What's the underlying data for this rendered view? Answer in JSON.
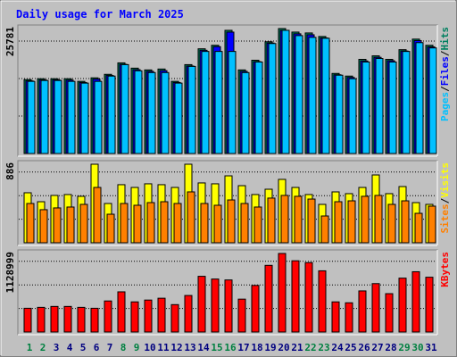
{
  "chart_data": {
    "type": "bar",
    "title": "Daily usage for March 2025",
    "categories": [
      "1",
      "2",
      "3",
      "4",
      "5",
      "6",
      "7",
      "8",
      "9",
      "10",
      "11",
      "12",
      "13",
      "14",
      "15",
      "16",
      "17",
      "18",
      "19",
      "20",
      "21",
      "22",
      "23",
      "24",
      "25",
      "26",
      "27",
      "28",
      "29",
      "30",
      "31"
    ],
    "category_colors": [
      "#008040",
      "#008040",
      "#000080",
      "#000080",
      "#000080",
      "#000080",
      "#000080",
      "#008040",
      "#008040",
      "#000080",
      "#000080",
      "#000080",
      "#000080",
      "#000080",
      "#008040",
      "#008040",
      "#000080",
      "#000080",
      "#000080",
      "#000080",
      "#000080",
      "#008040",
      "#008040",
      "#000080",
      "#000080",
      "#000080",
      "#000080",
      "#000080",
      "#008040",
      "#008040",
      "#000080"
    ],
    "legend_separator": "/",
    "panels": [
      {
        "ylim": [
          0,
          25781
        ],
        "yticks": [
          25781
        ],
        "series": [
          {
            "name": "Hits",
            "color": "#008060",
            "values": [
              15251,
              15433,
              15433,
              15433,
              14888,
              15614,
              16340,
              18701,
              17611,
              17248,
              17430,
              14888,
              18338,
              21606,
              22332,
              25418,
              17248,
              19245,
              23058,
              25781,
              25055,
              24874,
              24147,
              16522,
              15977,
              19427,
              20153,
              19427,
              21424,
              23603,
              22332
            ]
          },
          {
            "name": "Files",
            "color": "#0000ff",
            "values": [
              14990,
              15180,
              15200,
              15150,
              14650,
              15350,
              16100,
              18400,
              17300,
              16950,
              17100,
              14650,
              18050,
              21300,
              22050,
              25050,
              16950,
              18950,
              22800,
              25400,
              24700,
              24500,
              23850,
              16250,
              15700,
              19100,
              19850,
              19150,
              21150,
              23300,
              22000
            ]
          },
          {
            "name": "Pages",
            "color": "#00c0ff",
            "values": [
              14888,
              15069,
              15069,
              14888,
              14525,
              14888,
              15977,
              18338,
              17067,
              16704,
              16704,
              14525,
              17974,
              21061,
              21061,
              21061,
              16704,
              18882,
              22695,
              25418,
              24329,
              23966,
              23784,
              16159,
              15433,
              18882,
              19608,
              18882,
              21061,
              22876,
              21787
            ]
          }
        ]
      },
      {
        "ylim": [
          0,
          886
        ],
        "yticks": [
          886
        ],
        "series": [
          {
            "name": "Visits",
            "color": "#ffff00",
            "values": [
              564,
              463,
              534,
              544,
              524,
              886,
              443,
              655,
              624,
              665,
              655,
              624,
              886,
              675,
              665,
              755,
              644,
              544,
              604,
              715,
              624,
              544,
              433,
              574,
              554,
              624,
              765,
              554,
              634,
              453,
              433
            ]
          },
          {
            "name": "Sites",
            "color": "#ff8000",
            "values": [
              443,
              373,
              393,
              403,
              433,
              624,
              322,
              443,
              423,
              453,
              463,
              443,
              574,
              443,
              423,
              483,
              443,
              403,
              504,
              534,
              524,
              493,
              302,
              463,
              473,
              524,
              534,
              433,
              473,
              332,
              413
            ]
          }
        ]
      },
      {
        "ylim": [
          0,
          1128999
        ],
        "yticks": [
          1128999
        ],
        "series": [
          {
            "name": "KBytes",
            "color": "#ff0000",
            "values": [
              341328,
              354456,
              367584,
              367584,
              354456,
              341328,
              446352,
              577632,
              433224,
              459480,
              485736,
              393840,
              525120,
              800808,
              761424,
              748296,
              472608,
              669528,
              958344,
              1128999,
              1023984,
              997728,
              879576,
              433224,
              420096,
              590760,
              695784,
              551376,
              774552,
              866448,
              787680
            ]
          }
        ]
      }
    ]
  }
}
